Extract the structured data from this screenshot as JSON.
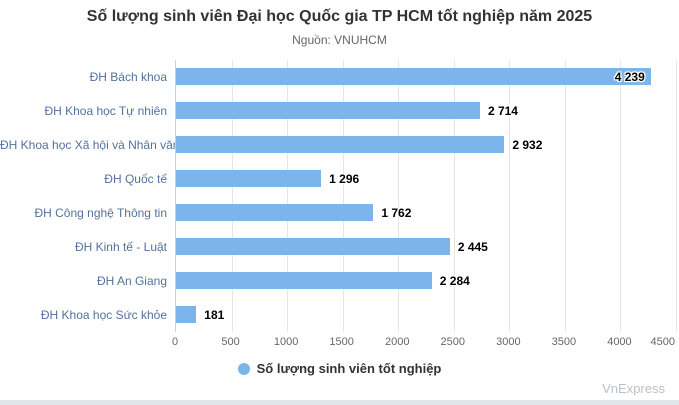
{
  "header": {
    "title": "Số lượng sinh viên Đại học Quốc gia TP HCM tốt nghiệp năm 2025",
    "subtitle": "Nguồn: VNUHCM"
  },
  "chart_data": {
    "type": "bar",
    "orientation": "horizontal",
    "title": "Số lượng sinh viên Đại học Quốc gia TP HCM tốt nghiệp năm 2025",
    "subtitle": "Nguồn: VNUHCM",
    "categories": [
      "ĐH Bách khoa",
      "ĐH Khoa học Tự nhiên",
      "ĐH Khoa học Xã hội và Nhân văn",
      "ĐH Quốc tế",
      "ĐH Công nghệ Thông tin",
      "ĐH Kinh tế - Luật",
      "ĐH An Giang",
      "ĐH Khoa học Sức khỏe"
    ],
    "values": [
      4239,
      2714,
      2932,
      1296,
      1762,
      2445,
      2284,
      181
    ],
    "value_labels": [
      "4 239",
      "2 714",
      "2 932",
      "1 296",
      "1 762",
      "2 445",
      "2 284",
      "181"
    ],
    "xlim": [
      0,
      4500
    ],
    "ticks": [
      0,
      500,
      1000,
      1500,
      2000,
      2500,
      3000,
      3500,
      4000,
      4500
    ],
    "grid": true,
    "legend": {
      "label": "Số lượng sinh viên tốt nghiệp",
      "position": "bottom"
    },
    "xlabel": "",
    "ylabel": ""
  },
  "colors": {
    "bar": "#7cb5ec",
    "category_label": "#53729b",
    "value_label": "#000000",
    "grid": "#e6e6e6",
    "axis_line": "#ccd1d6",
    "tick_label": "#666666",
    "title": "#333333",
    "subtitle": "#666666",
    "watermark": "#b9c1c9"
  },
  "footer": {
    "watermark": "VnExpress"
  }
}
